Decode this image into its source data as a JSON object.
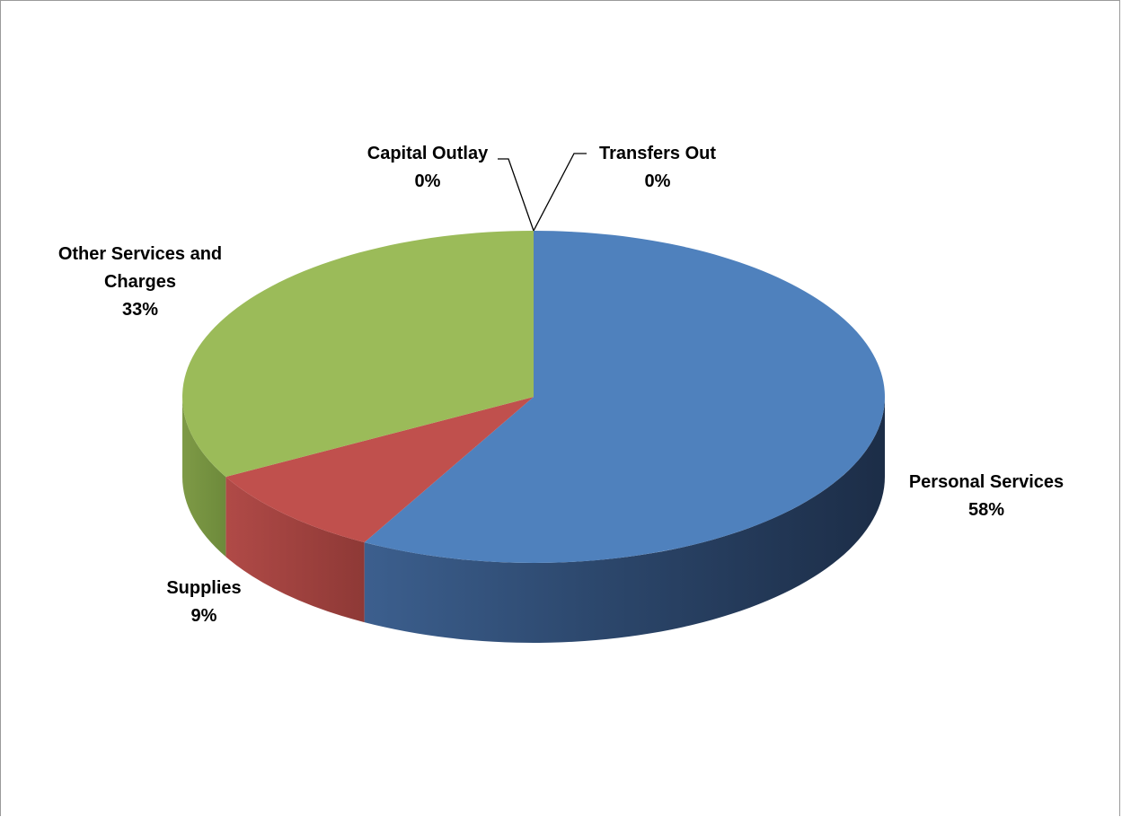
{
  "chart_data": {
    "type": "pie",
    "title": "",
    "slices": [
      {
        "name": "Personal Services",
        "percent_label": "58%",
        "value": 58,
        "color": "#4F81BD"
      },
      {
        "name": "Supplies",
        "percent_label": "9%",
        "value": 9,
        "color": "#C0504D"
      },
      {
        "name": "Other Services and Charges",
        "name_lines": [
          "Other Services and",
          "Charges"
        ],
        "percent_label": "33%",
        "value": 33,
        "color": "#9BBB59"
      },
      {
        "name": "Capital Outlay",
        "percent_label": "0%",
        "value": 0,
        "color": "#8064A2"
      },
      {
        "name": "Transfers Out",
        "percent_label": "0%",
        "value": 0,
        "color": "#4BACC6"
      }
    ],
    "style": "3d",
    "legend": "none"
  }
}
